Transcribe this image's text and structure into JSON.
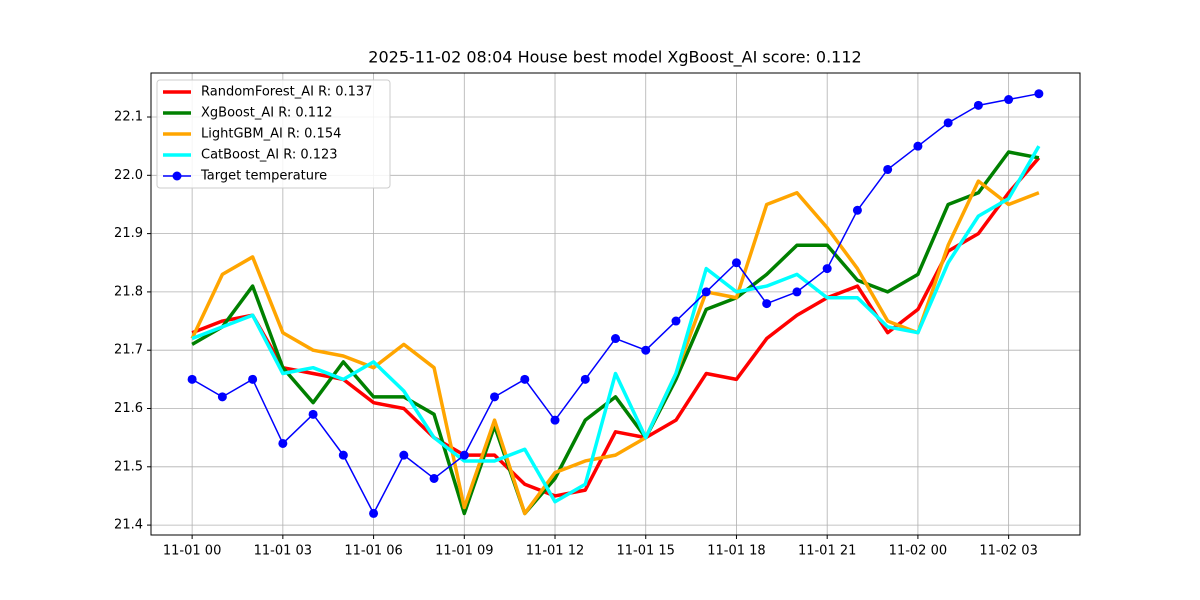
{
  "chart_data": {
    "type": "line",
    "title": "2025-11-02 08:04 House best model XgBoost_AI score: 0.112",
    "categories": [
      "11-01 00",
      null,
      null,
      "11-01 03",
      null,
      null,
      "11-01 06",
      null,
      null,
      "11-01 09",
      null,
      null,
      "11-01 12",
      null,
      null,
      "11-01 15",
      null,
      null,
      "11-01 18",
      null,
      null,
      "11-01 21",
      null,
      null,
      "11-02 00",
      null,
      null,
      "11-02 03",
      null
    ],
    "series": [
      {
        "name": "RandomForest_AI R: 0.137",
        "color": "#ff0000",
        "linewidth": 3.5,
        "marker": false,
        "values": [
          21.73,
          21.75,
          21.76,
          21.67,
          21.66,
          21.65,
          21.61,
          21.6,
          21.55,
          21.52,
          21.52,
          21.47,
          21.45,
          21.46,
          21.56,
          21.55,
          21.58,
          21.66,
          21.65,
          21.72,
          21.76,
          21.79,
          21.81,
          21.73,
          21.77,
          21.87,
          21.9,
          21.97,
          22.03
        ]
      },
      {
        "name": "XgBoost_AI R: 0.112",
        "color": "#008000",
        "linewidth": 3.5,
        "marker": false,
        "values": [
          21.71,
          21.74,
          21.81,
          21.67,
          21.61,
          21.68,
          21.62,
          21.62,
          21.59,
          21.42,
          21.57,
          21.42,
          21.48,
          21.58,
          21.62,
          21.55,
          21.65,
          21.77,
          21.79,
          21.83,
          21.88,
          21.88,
          21.82,
          21.8,
          21.83,
          21.95,
          21.97,
          22.04,
          22.03
        ]
      },
      {
        "name": "LightGBM_AI R: 0.154",
        "color": "#ffa500",
        "linewidth": 3.5,
        "marker": false,
        "values": [
          21.72,
          21.83,
          21.86,
          21.73,
          21.7,
          21.69,
          21.67,
          21.71,
          21.67,
          21.43,
          21.58,
          21.42,
          21.49,
          21.51,
          21.52,
          21.55,
          21.66,
          21.8,
          21.79,
          21.95,
          21.97,
          21.91,
          21.84,
          21.75,
          21.73,
          21.88,
          21.99,
          21.95,
          21.97
        ]
      },
      {
        "name": "CatBoost_AI R: 0.123",
        "color": "#00ffff",
        "linewidth": 3.5,
        "marker": false,
        "values": [
          21.72,
          21.74,
          21.76,
          21.66,
          21.67,
          21.65,
          21.68,
          21.63,
          21.55,
          21.51,
          21.51,
          21.53,
          21.44,
          21.47,
          21.66,
          21.55,
          21.66,
          21.84,
          21.8,
          21.81,
          21.83,
          21.79,
          21.79,
          21.74,
          21.73,
          21.85,
          21.93,
          21.96,
          22.05
        ]
      },
      {
        "name": "Target temperature",
        "color": "#0000ff",
        "linewidth": 1.5,
        "marker": true,
        "values": [
          21.65,
          21.62,
          21.65,
          21.54,
          21.59,
          21.52,
          21.42,
          21.52,
          21.48,
          21.52,
          21.62,
          21.65,
          21.58,
          21.65,
          21.72,
          21.7,
          21.75,
          21.8,
          21.85,
          21.78,
          21.8,
          21.84,
          21.94,
          22.01,
          22.05,
          22.09,
          22.12,
          22.13,
          22.14
        ]
      }
    ],
    "ylim": [
      21.383,
      22.1755
    ],
    "yticks": [
      21.4,
      21.5,
      21.6,
      21.7,
      21.8,
      21.9,
      {
        "value": 22.0,
        "label": "22.0"
      },
      22.1
    ],
    "grid": true,
    "legend": "upper-left"
  }
}
